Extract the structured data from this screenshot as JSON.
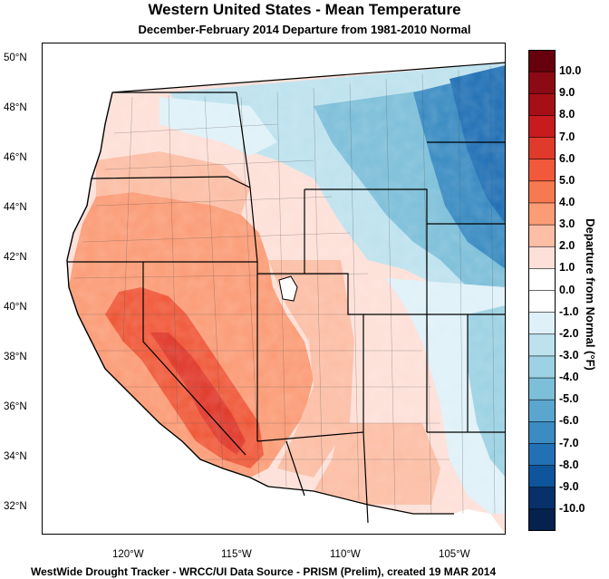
{
  "title": "Western United States - Mean Temperature",
  "subtitle": "December-February 2014  Departure from 1981-2010 Normal",
  "footer": "WestWide Drought Tracker - WRCC/UI  Data Source - PRISM (Prelim), created 19 MAR 2014",
  "colorbar": {
    "title": "Departure from Normal (°F)",
    "labels": [
      "10.0",
      "9.0",
      "8.0",
      "7.0",
      "6.0",
      "5.0",
      "4.0",
      "3.0",
      "2.0",
      "1.0",
      "0.0",
      "-1.0",
      "-2.0",
      "-3.0",
      "-4.0",
      "-5.0",
      "-6.0",
      "-7.0",
      "-8.0",
      "-9.0",
      "-10.0"
    ],
    "colors": [
      "#67000d",
      "#8b0a14",
      "#a50f15",
      "#c81b1e",
      "#e03a2c",
      "#f0593a",
      "#f7794f",
      "#fb9c77",
      "#fcbea5",
      "#fde0d8",
      "#ffffff",
      "#ffffff",
      "#dff1f8",
      "#bde2ee",
      "#9cd2e3",
      "#7dbfd9",
      "#5aa6cf",
      "#3b8cc2",
      "#2271b5",
      "#0e559b",
      "#08306b",
      "#05224f"
    ]
  },
  "axes": {
    "lat_labels": [
      "50°N",
      "48°N",
      "46°N",
      "44°N",
      "42°N",
      "40°N",
      "38°N",
      "36°N",
      "34°N",
      "32°N"
    ],
    "lon_labels": [
      "120°W",
      "115°W",
      "110°W",
      "105°W"
    ]
  }
}
